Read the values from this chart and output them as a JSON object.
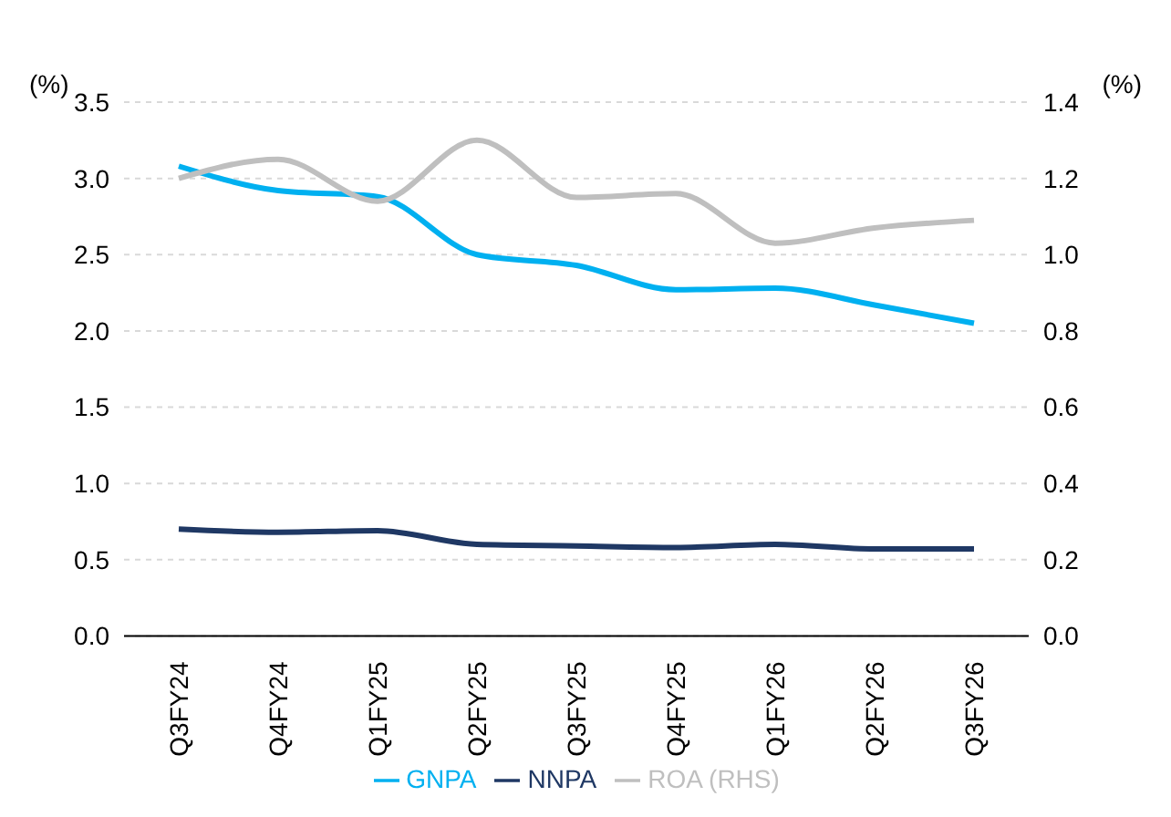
{
  "chart_data": {
    "type": "line",
    "categories": [
      "Q3FY24",
      "Q4FY24",
      "Q1FY25",
      "Q2FY25",
      "Q3FY25",
      "Q4FY25",
      "Q1FY26",
      "Q2FY26",
      "Q3FY26"
    ],
    "series": [
      {
        "name": "GNPA",
        "color": "#00b0f0",
        "values": [
          3.08,
          2.92,
          2.88,
          2.5,
          2.43,
          2.27,
          2.28,
          2.17,
          2.05
        ]
      },
      {
        "name": "NNPA",
        "color": "#1f3864",
        "values": [
          0.7,
          0.68,
          0.69,
          0.6,
          0.59,
          0.58,
          0.6,
          0.57,
          0.57
        ]
      },
      {
        "name": "ROA (RHS)",
        "color": "#bfbfbf",
        "axis": "y2",
        "values": [
          1.2,
          1.25,
          1.14,
          1.3,
          1.15,
          1.16,
          1.03,
          1.07,
          1.09
        ]
      }
    ],
    "ylabel": "(%)",
    "y2label": "(%)",
    "ylim": [
      0,
      3.5
    ],
    "yticks": [
      {
        "value": 0,
        "label": "0.0"
      },
      {
        "value": 0.5,
        "label": "0.5"
      },
      {
        "value": 1,
        "label": "1.0"
      },
      {
        "value": 1.5,
        "label": "1.5"
      },
      {
        "value": 2,
        "label": "2.0"
      },
      {
        "value": 2.5,
        "label": "2.5"
      },
      {
        "value": 3,
        "label": "3.0"
      },
      {
        "value": 3.5,
        "label": "3.5"
      }
    ],
    "y2lim": [
      0,
      1.4
    ],
    "y2ticks": [
      {
        "value": 0,
        "label": "0.0"
      },
      {
        "value": 0.2,
        "label": "0.2"
      },
      {
        "value": 0.4,
        "label": "0.4"
      },
      {
        "value": 0.6,
        "label": "0.6"
      },
      {
        "value": 0.8,
        "label": "0.8"
      },
      {
        "value": 1,
        "label": "1.0"
      },
      {
        "value": 1.2,
        "label": "1.2"
      },
      {
        "value": 1.4,
        "label": "1.4"
      }
    ],
    "grid": "y",
    "legend": "bottom",
    "marker": "none",
    "line_style": "solid"
  }
}
